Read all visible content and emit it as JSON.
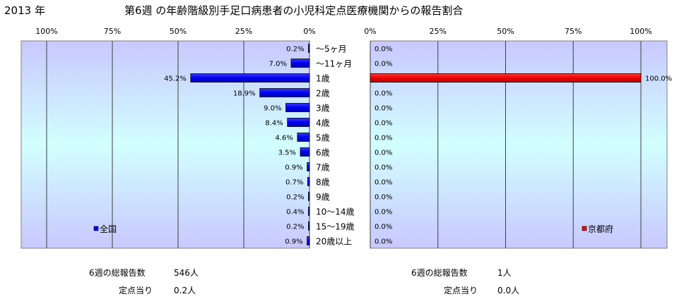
{
  "header": {
    "year": "2013 年",
    "title": "第6週 の年齢階級別手足口病患者の小児科定点医療機関からの報告割合"
  },
  "chart_data": [
    {
      "type": "bar",
      "orientation": "horizontal",
      "direction": "right-to-left",
      "series": [
        {
          "name": "全国",
          "color": "#0000ff",
          "values": [
            0.2,
            7.0,
            45.2,
            18.9,
            9.0,
            8.4,
            4.6,
            3.5,
            0.9,
            0.7,
            0.2,
            0.4,
            0.2,
            0.9
          ],
          "labels": [
            "0.2%",
            "7.0%",
            "45.2%",
            "18.9%",
            "9.0%",
            "8.4%",
            "4.6%",
            "3.5%",
            "0.9%",
            "0.7%",
            "0.2%",
            "0.4%",
            "0.2%",
            "0.9%"
          ]
        }
      ],
      "xlim": [
        0,
        100
      ],
      "ticks": [
        "100%",
        "75%",
        "50%",
        "25%",
        "0%"
      ],
      "legend": "bottom-left",
      "grid": true
    },
    {
      "type": "bar",
      "orientation": "horizontal",
      "direction": "left-to-right",
      "series": [
        {
          "name": "京都府",
          "color": "#ff0000",
          "values": [
            0.0,
            0.0,
            100.0,
            0.0,
            0.0,
            0.0,
            0.0,
            0.0,
            0.0,
            0.0,
            0.0,
            0.0,
            0.0,
            0.0
          ],
          "labels": [
            "0.0%",
            "0.0%",
            "100.0%",
            "0.0%",
            "0.0%",
            "0.0%",
            "0.0%",
            "0.0%",
            "0.0%",
            "0.0%",
            "0.0%",
            "0.0%",
            "0.0%",
            "0.0%"
          ]
        }
      ],
      "xlim": [
        0,
        100
      ],
      "ticks": [
        "0%",
        "25%",
        "50%",
        "75%",
        "100%"
      ],
      "legend": "bottom-right",
      "grid": true
    }
  ],
  "categories": [
    "～5ヶ月",
    "～11ヶ月",
    "1歳",
    "2歳",
    "3歳",
    "4歳",
    "5歳",
    "6歳",
    "7歳",
    "8歳",
    "9歳",
    "10～14歳",
    "15～19歳",
    "20歳以上"
  ],
  "footer": {
    "national": {
      "reports_label": "6週の総報告数",
      "reports_value": "546人",
      "per_point_label": "定点当り",
      "per_point_value": "0.2人"
    },
    "kyoto": {
      "reports_label": "6週の総報告数",
      "reports_value": "1人",
      "per_point_label": "定点当り",
      "per_point_value": "0.0人"
    }
  }
}
